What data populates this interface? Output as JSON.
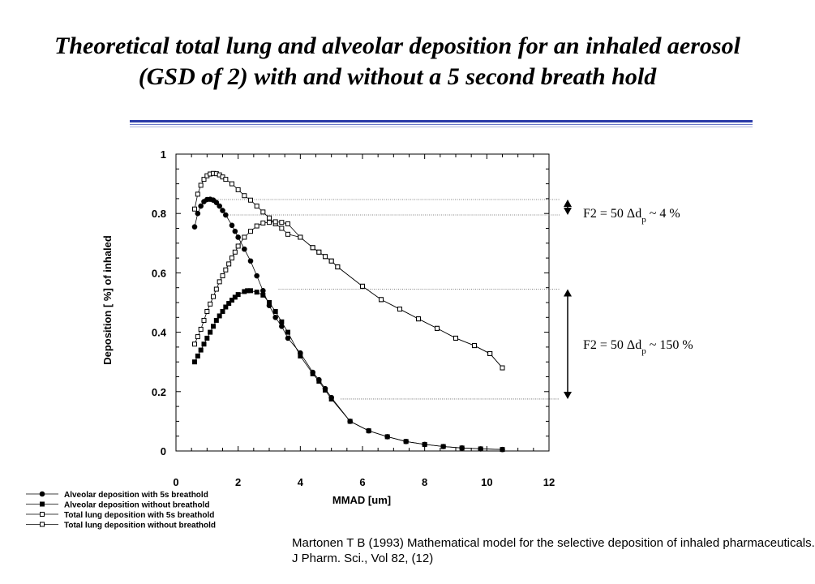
{
  "title": {
    "line1": "Theoretical total lung and alveolar deposition for an inhaled aerosol",
    "line2": "(GSD of 2) with and without a 5 second breath hold"
  },
  "chart_data": {
    "type": "line",
    "xlabel": "MMAD [um]",
    "ylabel": "Deposition [ %] of inhaled",
    "xlim": [
      0,
      12
    ],
    "ylim": [
      0,
      1
    ],
    "xticks": [
      "0",
      "2",
      "4",
      "6",
      "8",
      "10",
      "12"
    ],
    "yticks": [
      "0",
      "0.2",
      "0.4",
      "0.6",
      "0.8",
      "1"
    ],
    "grid": false,
    "legend_position": "below-left",
    "series": [
      {
        "name": "Alveolar deposition with 5s breathold",
        "marker": "circle",
        "filled": true,
        "x": [
          0.6,
          0.7,
          0.8,
          0.9,
          1.0,
          1.1,
          1.2,
          1.3,
          1.4,
          1.5,
          1.6,
          1.8,
          1.9,
          2.0,
          2.2,
          2.4,
          2.6,
          2.8,
          3.0,
          3.2,
          3.4,
          3.6,
          4.0,
          4.4,
          4.6,
          4.8,
          5.0,
          5.6,
          6.2,
          6.8,
          7.4,
          8.0,
          8.6,
          9.2,
          9.8,
          10.5
        ],
        "y": [
          0.755,
          0.8,
          0.825,
          0.84,
          0.847,
          0.848,
          0.845,
          0.837,
          0.825,
          0.81,
          0.795,
          0.76,
          0.74,
          0.72,
          0.68,
          0.64,
          0.59,
          0.54,
          0.49,
          0.45,
          0.42,
          0.38,
          0.33,
          0.265,
          0.24,
          0.21,
          0.18,
          0.1,
          0.068,
          0.048,
          0.032,
          0.022,
          0.015,
          0.01,
          0.007,
          0.005
        ]
      },
      {
        "name": "Alveolar deposition without breathold",
        "marker": "square",
        "filled": true,
        "x": [
          0.6,
          0.7,
          0.8,
          0.9,
          1.0,
          1.1,
          1.2,
          1.3,
          1.4,
          1.5,
          1.6,
          1.7,
          1.8,
          1.9,
          2.0,
          2.2,
          2.3,
          2.4,
          2.6,
          2.8,
          3.0,
          3.2,
          3.4,
          3.6,
          4.0,
          4.4,
          4.6,
          4.8,
          5.0,
          5.6,
          6.2,
          6.8,
          7.4,
          8.0,
          8.6,
          9.2,
          9.8,
          10.5
        ],
        "y": [
          0.3,
          0.32,
          0.34,
          0.36,
          0.38,
          0.4,
          0.42,
          0.44,
          0.455,
          0.47,
          0.485,
          0.497,
          0.508,
          0.518,
          0.527,
          0.537,
          0.54,
          0.54,
          0.535,
          0.525,
          0.5,
          0.47,
          0.435,
          0.4,
          0.32,
          0.26,
          0.235,
          0.205,
          0.175,
          0.1,
          0.068,
          0.048,
          0.032,
          0.022,
          0.015,
          0.01,
          0.007,
          0.005
        ]
      },
      {
        "name": "Total lung deposition with 5s breathold",
        "marker": "square",
        "filled": false,
        "x": [
          0.6,
          0.7,
          0.8,
          0.9,
          1.0,
          1.1,
          1.2,
          1.3,
          1.4,
          1.5,
          1.6,
          1.8,
          2.0,
          2.2,
          2.4,
          2.6,
          2.8,
          3.0,
          3.2,
          3.4,
          3.6,
          4.0,
          4.4,
          4.6,
          4.8,
          5.0,
          5.2,
          6.0,
          6.6,
          7.2,
          7.8,
          8.4,
          9.0,
          9.6,
          10.1,
          10.5
        ],
        "y": [
          0.815,
          0.865,
          0.895,
          0.915,
          0.927,
          0.933,
          0.935,
          0.934,
          0.93,
          0.923,
          0.915,
          0.9,
          0.88,
          0.86,
          0.845,
          0.825,
          0.805,
          0.785,
          0.765,
          0.75,
          0.73,
          0.72,
          0.685,
          0.67,
          0.655,
          0.64,
          0.62,
          0.555,
          0.51,
          0.478,
          0.445,
          0.413,
          0.38,
          0.355,
          0.328,
          0.28
        ]
      },
      {
        "name": "Total lung deposition without breathold",
        "marker": "square",
        "filled": false,
        "x": [
          0.6,
          0.7,
          0.8,
          0.9,
          1.0,
          1.1,
          1.2,
          1.3,
          1.4,
          1.5,
          1.6,
          1.7,
          1.8,
          1.9,
          2.0,
          2.2,
          2.4,
          2.6,
          2.8,
          3.0,
          3.2,
          3.4,
          3.6,
          4.0,
          4.4,
          4.6,
          4.8,
          5.0,
          5.2,
          6.0,
          6.6,
          7.2,
          7.8,
          8.4,
          9.0,
          9.6,
          10.1,
          10.5
        ],
        "y": [
          0.36,
          0.385,
          0.41,
          0.44,
          0.47,
          0.495,
          0.52,
          0.545,
          0.57,
          0.59,
          0.61,
          0.63,
          0.65,
          0.67,
          0.69,
          0.72,
          0.74,
          0.758,
          0.768,
          0.77,
          0.772,
          0.77,
          0.765,
          0.72,
          0.685,
          0.67,
          0.655,
          0.64,
          0.62,
          0.555,
          0.51,
          0.478,
          0.445,
          0.413,
          0.38,
          0.355,
          0.328,
          0.28
        ]
      }
    ],
    "annotations": [
      {
        "text": "F2 = 50 Δd",
        "subscript": "p",
        "suffix": " ~ 4 %",
        "x": 11.8,
        "y_from": 0.847,
        "y_to": 0.795
      },
      {
        "text": "F2 = 50 Δd",
        "subscript": "p",
        "suffix": " ~ 150 %",
        "x": 11.8,
        "y_from": 0.545,
        "y_to": 0.175
      }
    ]
  },
  "citation": {
    "line1": "Martonen T B (1993) Mathematical model for the selective deposition of inhaled pharmaceuticals.",
    "line2": "J Pharm. Sci., Vol 82, (12)"
  },
  "colors": {
    "rule": "#2b3ba8",
    "ink": "#000000",
    "background": "#ffffff"
  }
}
